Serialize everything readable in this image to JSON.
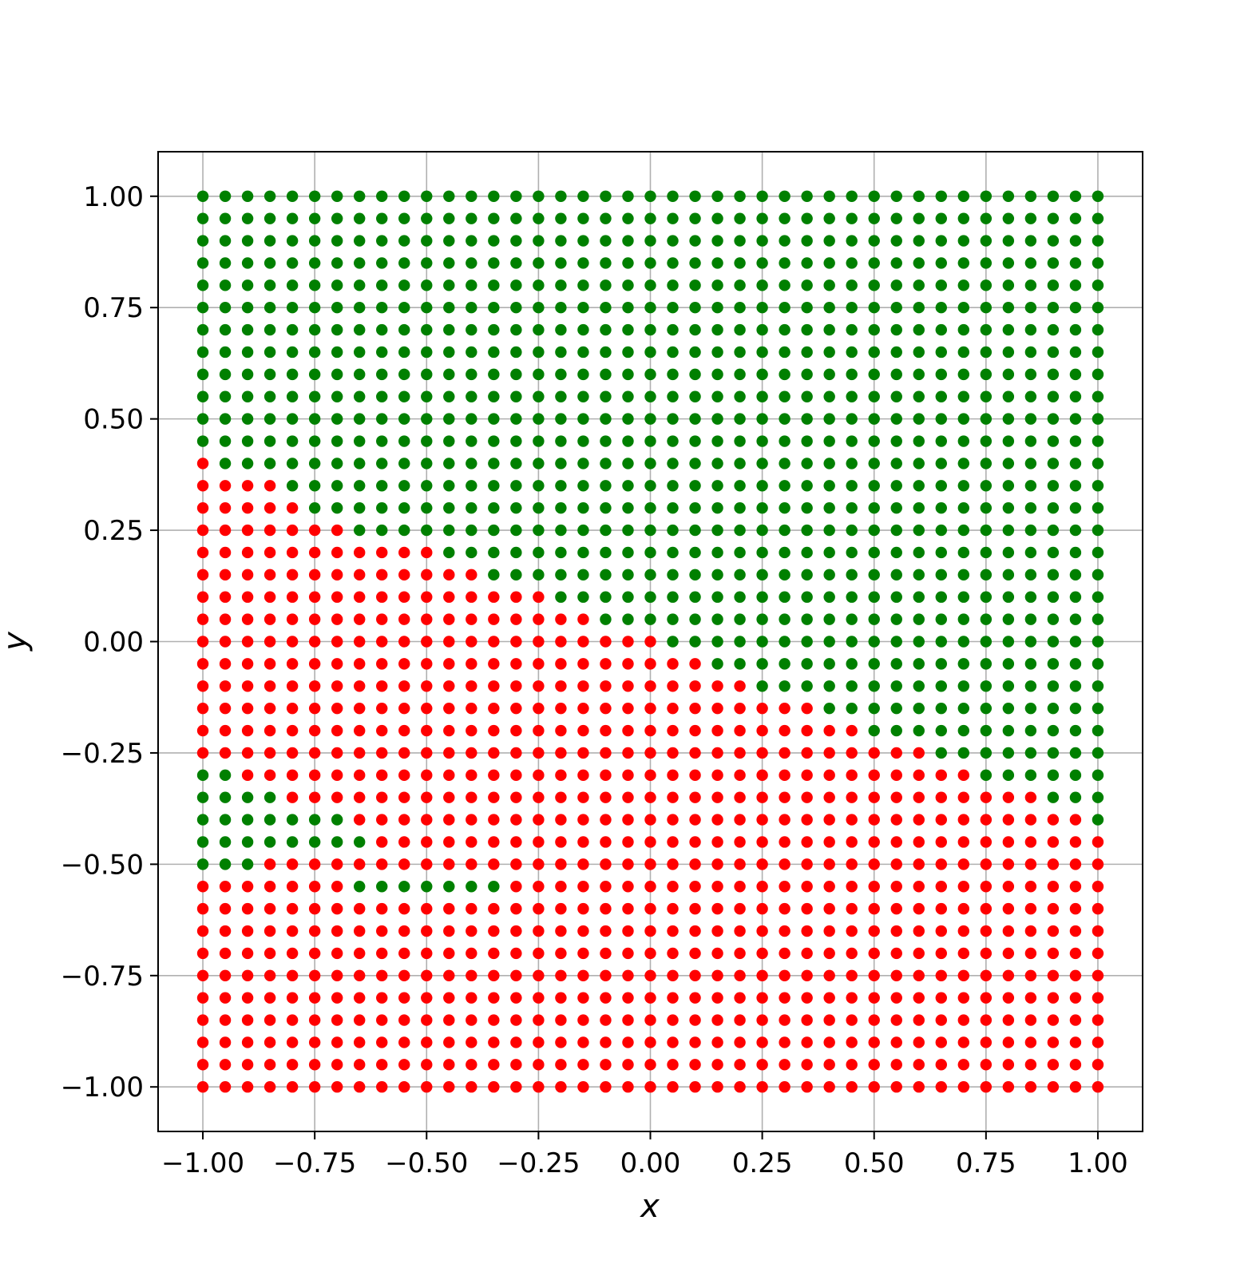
{
  "chart_data": {
    "type": "scatter",
    "title": "",
    "xlabel": "x",
    "ylabel": "y",
    "xlim": [
      -1.1,
      1.1
    ],
    "ylim": [
      -1.1,
      1.1
    ],
    "grid": true,
    "legend": "none",
    "x_ticks": [
      -1.0,
      -0.75,
      -0.5,
      -0.25,
      0.0,
      0.25,
      0.5,
      0.75,
      1.0
    ],
    "x_tick_labels": [
      "−1.00",
      "−0.75",
      "−0.50",
      "−0.25",
      "0.00",
      "0.25",
      "0.50",
      "0.75",
      "1.00"
    ],
    "y_ticks": [
      -1.0,
      -0.75,
      -0.5,
      -0.25,
      0.0,
      0.25,
      0.5,
      0.75,
      1.0
    ],
    "y_tick_labels": [
      "−1.00",
      "−0.75",
      "−0.50",
      "−0.25",
      "0.00",
      "0.25",
      "0.50",
      "0.75",
      "1.00"
    ],
    "grid_x_values": [
      -1.0,
      -0.95,
      -0.9,
      -0.85,
      -0.8,
      -0.75,
      -0.7,
      -0.65,
      -0.6,
      -0.55,
      -0.5,
      -0.45,
      -0.4,
      -0.35,
      -0.3,
      -0.25,
      -0.2,
      -0.15,
      -0.1,
      -0.05,
      0.0,
      0.05,
      0.1,
      0.15,
      0.2,
      0.25,
      0.3,
      0.35,
      0.4,
      0.45,
      0.5,
      0.55,
      0.6,
      0.65,
      0.7,
      0.75,
      0.8,
      0.85,
      0.9,
      0.95,
      1.0
    ],
    "classes": [
      {
        "id": "green",
        "color": "#008000"
      },
      {
        "id": "red",
        "color": "#ff0000"
      }
    ],
    "rows": [
      {
        "y": 1.0,
        "red_x_ranges": []
      },
      {
        "y": 0.95,
        "red_x_ranges": []
      },
      {
        "y": 0.9,
        "red_x_ranges": []
      },
      {
        "y": 0.85,
        "red_x_ranges": []
      },
      {
        "y": 0.8,
        "red_x_ranges": []
      },
      {
        "y": 0.75,
        "red_x_ranges": []
      },
      {
        "y": 0.7,
        "red_x_ranges": []
      },
      {
        "y": 0.65,
        "red_x_ranges": []
      },
      {
        "y": 0.6,
        "red_x_ranges": []
      },
      {
        "y": 0.55,
        "red_x_ranges": []
      },
      {
        "y": 0.5,
        "red_x_ranges": []
      },
      {
        "y": 0.45,
        "red_x_ranges": []
      },
      {
        "y": 0.4,
        "red_x_ranges": [
          [
            -1.0,
            -1.0
          ]
        ]
      },
      {
        "y": 0.35,
        "red_x_ranges": [
          [
            -1.0,
            -0.85
          ]
        ]
      },
      {
        "y": 0.3,
        "red_x_ranges": [
          [
            -1.0,
            -0.8
          ]
        ]
      },
      {
        "y": 0.25,
        "red_x_ranges": [
          [
            -1.0,
            -0.7
          ]
        ]
      },
      {
        "y": 0.2,
        "red_x_ranges": [
          [
            -1.0,
            -0.5
          ]
        ]
      },
      {
        "y": 0.15,
        "red_x_ranges": [
          [
            -1.0,
            -0.4
          ]
        ]
      },
      {
        "y": 0.1,
        "red_x_ranges": [
          [
            -1.0,
            -0.25
          ]
        ]
      },
      {
        "y": 0.05,
        "red_x_ranges": [
          [
            -1.0,
            -0.15
          ]
        ]
      },
      {
        "y": 0.0,
        "red_x_ranges": [
          [
            -1.0,
            0.0
          ]
        ]
      },
      {
        "y": -0.05,
        "red_x_ranges": [
          [
            -1.0,
            0.1
          ]
        ]
      },
      {
        "y": -0.1,
        "red_x_ranges": [
          [
            -1.0,
            0.2
          ]
        ]
      },
      {
        "y": -0.15,
        "red_x_ranges": [
          [
            -1.0,
            0.35
          ]
        ]
      },
      {
        "y": -0.2,
        "red_x_ranges": [
          [
            -1.0,
            0.45
          ]
        ]
      },
      {
        "y": -0.25,
        "red_x_ranges": [
          [
            -1.0,
            0.6
          ]
        ]
      },
      {
        "y": -0.3,
        "red_x_ranges": [
          [
            -0.9,
            0.7
          ]
        ]
      },
      {
        "y": -0.35,
        "red_x_ranges": [
          [
            -0.8,
            0.85
          ]
        ]
      },
      {
        "y": -0.4,
        "red_x_ranges": [
          [
            -0.65,
            0.95
          ]
        ]
      },
      {
        "y": -0.45,
        "red_x_ranges": [
          [
            -0.6,
            1.0
          ]
        ]
      },
      {
        "y": -0.5,
        "red_x_ranges": [
          [
            -0.85,
            1.0
          ]
        ]
      },
      {
        "y": -0.55,
        "red_x_ranges": [
          [
            -1.0,
            -0.7
          ],
          [
            -0.3,
            1.0
          ]
        ]
      },
      {
        "y": -0.6,
        "red_x_ranges": [
          [
            -1.0,
            1.0
          ]
        ]
      },
      {
        "y": -0.65,
        "red_x_ranges": [
          [
            -1.0,
            1.0
          ]
        ]
      },
      {
        "y": -0.7,
        "red_x_ranges": [
          [
            -1.0,
            1.0
          ]
        ]
      },
      {
        "y": -0.75,
        "red_x_ranges": [
          [
            -1.0,
            1.0
          ]
        ]
      },
      {
        "y": -0.8,
        "red_x_ranges": [
          [
            -1.0,
            1.0
          ]
        ]
      },
      {
        "y": -0.85,
        "red_x_ranges": [
          [
            -1.0,
            1.0
          ]
        ]
      },
      {
        "y": -0.9,
        "red_x_ranges": [
          [
            -1.0,
            1.0
          ]
        ]
      },
      {
        "y": -0.95,
        "red_x_ranges": [
          [
            -1.0,
            1.0
          ]
        ]
      },
      {
        "y": -1.0,
        "red_x_ranges": [
          [
            -1.0,
            1.0
          ]
        ]
      }
    ]
  }
}
